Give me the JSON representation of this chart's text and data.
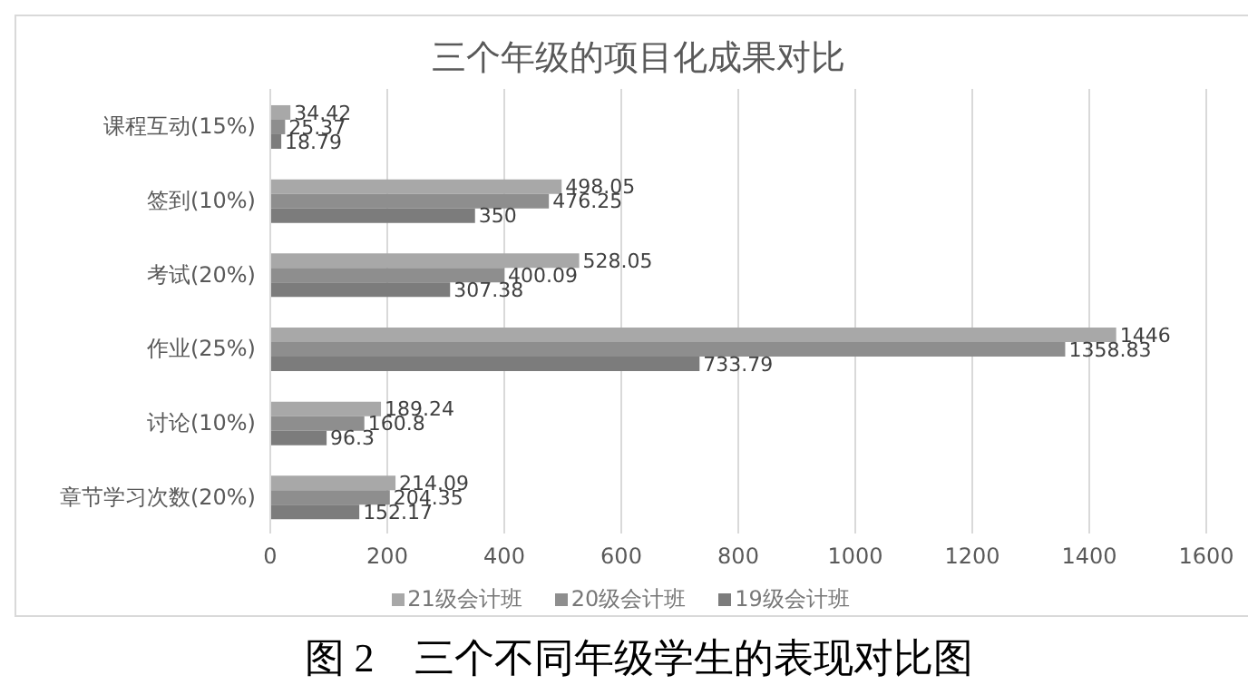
{
  "chart_data": {
    "type": "bar",
    "orientation": "horizontal",
    "title": "三个年级的项目化成果对比",
    "categories": [
      "课程互动(15%)",
      "签到(10%)",
      "考试(20%)",
      "作业(25%)",
      "讨论(10%)",
      "章节学习次数(20%)"
    ],
    "series": [
      {
        "name": "21级会计班",
        "color": "#a8a8a8",
        "values": [
          34.42,
          498.05,
          528.05,
          1446,
          189.24,
          214.09
        ]
      },
      {
        "name": "20级会计班",
        "color": "#8e8e8e",
        "values": [
          25.37,
          476.25,
          400.09,
          1358.83,
          160.8,
          204.35
        ]
      },
      {
        "name": "19级会计班",
        "color": "#7c7c7c",
        "values": [
          18.79,
          350,
          307.38,
          733.79,
          96.3,
          152.17
        ]
      }
    ],
    "xlim": [
      0,
      1600
    ],
    "xticks": [
      0,
      200,
      400,
      600,
      800,
      1000,
      1200,
      1400,
      1600
    ],
    "grid": "x",
    "legend": "bottom",
    "data_labels": true,
    "annotations": [
      "图 2　三个不同年级学生的表现对比图"
    ]
  }
}
